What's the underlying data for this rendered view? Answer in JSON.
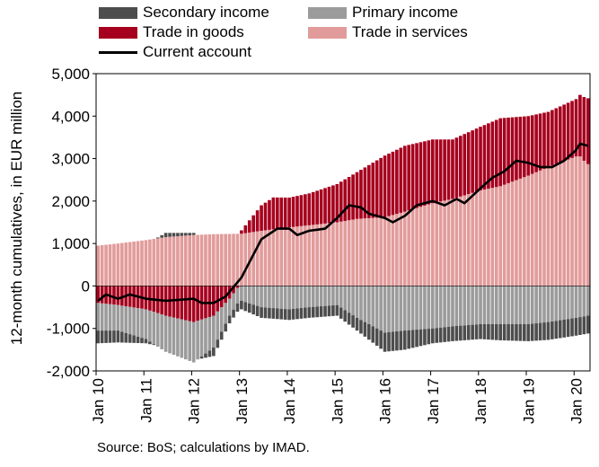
{
  "chart_data": {
    "type": "bar",
    "stacked": true,
    "source": "Source: BoS; calculations by IMAD.",
    "ylabel": "12-month cumulatives, in EUR million",
    "ylim": [
      -2000,
      5000
    ],
    "yticks": [
      "-2,000",
      "-1,000",
      "0",
      "1,000",
      "2,000",
      "3,000",
      "4,000",
      "5,000"
    ],
    "ytick_values": [
      -2000,
      -1000,
      0,
      1000,
      2000,
      3000,
      4000,
      5000
    ],
    "xtick_labels": [
      "Jan 10",
      "Jan 11",
      "Jan 12",
      "Jan 13",
      "Jan 14",
      "Jan 15",
      "Jan 16",
      "Jan 17",
      "Jan 18",
      "Jan 19",
      "Jan 20"
    ],
    "x_start": "2010-01",
    "x_end": "2020-04",
    "legend": {
      "secondary_income": "Secondary income",
      "primary_income": "Primary income",
      "trade_in_goods": "Trade in goods",
      "trade_in_services": "Trade in services",
      "current_account": "Current account"
    },
    "colors": {
      "secondary_income": "#4d4d4d",
      "primary_income": "#9b9b9b",
      "trade_in_goods": "#a6001e",
      "trade_in_services": "#e29b9b",
      "current_account": "#000000"
    },
    "series_anchors": {
      "trade_in_services": [
        [
          "2010-01",
          950
        ],
        [
          "2010-06",
          1000
        ],
        [
          "2011-01",
          1080
        ],
        [
          "2011-06",
          1150
        ],
        [
          "2012-01",
          1200
        ],
        [
          "2012-06",
          1220
        ],
        [
          "2013-01",
          1230
        ],
        [
          "2013-06",
          1300
        ],
        [
          "2014-01",
          1380
        ],
        [
          "2014-06",
          1430
        ],
        [
          "2015-01",
          1500
        ],
        [
          "2015-06",
          1580
        ],
        [
          "2016-01",
          1620
        ],
        [
          "2016-06",
          1750
        ],
        [
          "2017-01",
          1950
        ],
        [
          "2017-06",
          2050
        ],
        [
          "2018-01",
          2250
        ],
        [
          "2018-06",
          2350
        ],
        [
          "2019-01",
          2600
        ],
        [
          "2019-06",
          2800
        ],
        [
          "2020-01",
          3050
        ],
        [
          "2020-02",
          3050
        ],
        [
          "2020-03",
          2950
        ],
        [
          "2020-04",
          2870
        ]
      ],
      "trade_in_goods": [
        [
          "2010-01",
          -400
        ],
        [
          "2010-06",
          -450
        ],
        [
          "2011-01",
          -550
        ],
        [
          "2011-06",
          -700
        ],
        [
          "2012-01",
          -850
        ],
        [
          "2012-06",
          -700
        ],
        [
          "2012-10",
          -300
        ],
        [
          "2013-01",
          80
        ],
        [
          "2013-06",
          600
        ],
        [
          "2013-09",
          750
        ],
        [
          "2014-01",
          700
        ],
        [
          "2014-06",
          750
        ],
        [
          "2015-01",
          900
        ],
        [
          "2015-06",
          1100
        ],
        [
          "2016-01",
          1450
        ],
        [
          "2016-06",
          1550
        ],
        [
          "2017-01",
          1500
        ],
        [
          "2017-06",
          1400
        ],
        [
          "2018-01",
          1500
        ],
        [
          "2018-06",
          1600
        ],
        [
          "2019-01",
          1400
        ],
        [
          "2019-06",
          1300
        ],
        [
          "2020-01",
          1350
        ],
        [
          "2020-02",
          1450
        ],
        [
          "2020-04",
          1550
        ]
      ],
      "primary_income": [
        [
          "2010-01",
          -650
        ],
        [
          "2010-06",
          -600
        ],
        [
          "2011-01",
          -700
        ],
        [
          "2011-06",
          -850
        ],
        [
          "2012-01",
          -950
        ],
        [
          "2012-06",
          -750
        ],
        [
          "2012-10",
          -400
        ],
        [
          "2013-01",
          -350
        ],
        [
          "2013-06",
          -500
        ],
        [
          "2014-01",
          -550
        ],
        [
          "2014-06",
          -500
        ],
        [
          "2015-01",
          -450
        ],
        [
          "2015-06",
          -750
        ],
        [
          "2016-01",
          -1100
        ],
        [
          "2016-06",
          -1050
        ],
        [
          "2017-01",
          -1000
        ],
        [
          "2017-06",
          -950
        ],
        [
          "2018-01",
          -900
        ],
        [
          "2018-06",
          -900
        ],
        [
          "2019-01",
          -900
        ],
        [
          "2019-06",
          -850
        ],
        [
          "2020-01",
          -750
        ],
        [
          "2020-04",
          -700
        ]
      ],
      "secondary_income": [
        [
          "2010-01",
          -300
        ],
        [
          "2010-06",
          -280
        ],
        [
          "2011-01",
          -100
        ],
        [
          "2011-06",
          100
        ],
        [
          "2012-01",
          50
        ],
        [
          "2012-06",
          -200
        ],
        [
          "2012-10",
          -180
        ],
        [
          "2013-01",
          -200
        ],
        [
          "2013-06",
          -250
        ],
        [
          "2014-01",
          -250
        ],
        [
          "2014-06",
          -250
        ],
        [
          "2015-01",
          -250
        ],
        [
          "2015-06",
          -300
        ],
        [
          "2016-01",
          -450
        ],
        [
          "2016-06",
          -450
        ],
        [
          "2017-01",
          -350
        ],
        [
          "2017-06",
          -350
        ],
        [
          "2018-01",
          -350
        ],
        [
          "2018-06",
          -380
        ],
        [
          "2019-01",
          -400
        ],
        [
          "2019-06",
          -420
        ],
        [
          "2020-01",
          -420
        ],
        [
          "2020-04",
          -420
        ]
      ],
      "current_account": [
        [
          "2010-01",
          -350
        ],
        [
          "2010-03",
          -200
        ],
        [
          "2010-06",
          -300
        ],
        [
          "2010-09",
          -200
        ],
        [
          "2011-01",
          -300
        ],
        [
          "2011-06",
          -350
        ],
        [
          "2012-01",
          -300
        ],
        [
          "2012-03",
          -400
        ],
        [
          "2012-06",
          -400
        ],
        [
          "2012-09",
          -250
        ],
        [
          "2013-01",
          200
        ],
        [
          "2013-06",
          1100
        ],
        [
          "2013-10",
          1350
        ],
        [
          "2014-01",
          1350
        ],
        [
          "2014-03",
          1200
        ],
        [
          "2014-06",
          1300
        ],
        [
          "2014-10",
          1350
        ],
        [
          "2015-01",
          1600
        ],
        [
          "2015-04",
          1900
        ],
        [
          "2015-07",
          1850
        ],
        [
          "2015-09",
          1700
        ],
        [
          "2016-01",
          1600
        ],
        [
          "2016-03",
          1500
        ],
        [
          "2016-06",
          1650
        ],
        [
          "2016-09",
          1900
        ],
        [
          "2017-01",
          2000
        ],
        [
          "2017-04",
          1900
        ],
        [
          "2017-07",
          2050
        ],
        [
          "2017-09",
          1950
        ],
        [
          "2018-01",
          2300
        ],
        [
          "2018-04",
          2550
        ],
        [
          "2018-07",
          2700
        ],
        [
          "2018-10",
          2950
        ],
        [
          "2019-01",
          2900
        ],
        [
          "2019-04",
          2800
        ],
        [
          "2019-07",
          2800
        ],
        [
          "2019-10",
          2950
        ],
        [
          "2020-01",
          3200
        ],
        [
          "2020-02",
          3350
        ],
        [
          "2020-04",
          3300
        ]
      ]
    }
  }
}
